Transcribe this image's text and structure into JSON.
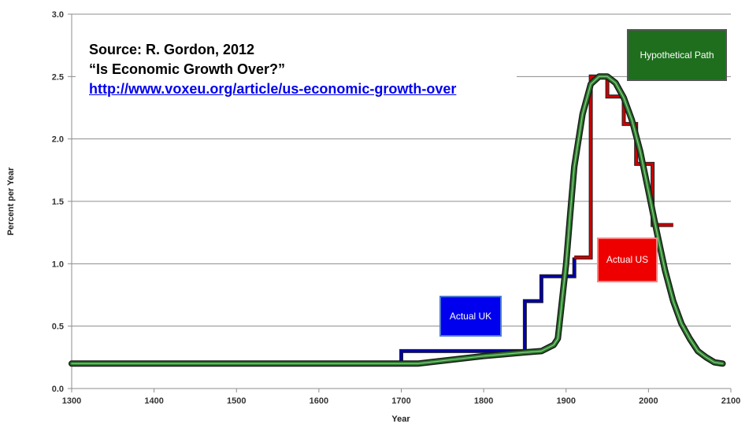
{
  "chart_data": {
    "type": "line",
    "xlabel": "Year",
    "ylabel": "Percent per Year",
    "xlim": [
      1300,
      2100
    ],
    "ylim": [
      0,
      3.0
    ],
    "x_ticks": [
      "1300",
      "1400",
      "1500",
      "1600",
      "1700",
      "1800",
      "1900",
      "2000",
      "2100"
    ],
    "y_ticks": [
      "0.0",
      "0.5",
      "1.0",
      "1.5",
      "2.0",
      "2.5",
      "3.0"
    ],
    "grid": "horizontal",
    "annotation": {
      "source": "Source: R. Gordon, 2012",
      "title": "“Is Economic Growth Over?”",
      "url": "http://www.voxeu.org/article/us-economic-growth-over"
    },
    "series": [
      {
        "name": "Actual UK",
        "color": "#0000aa",
        "step": true,
        "points": [
          [
            1300,
            0.2
          ],
          [
            1700,
            0.2
          ],
          [
            1700,
            0.3
          ],
          [
            1850,
            0.3
          ],
          [
            1850,
            0.7
          ],
          [
            1870,
            0.7
          ],
          [
            1870,
            0.9
          ],
          [
            1910,
            0.9
          ],
          [
            1910,
            1.05
          ]
        ]
      },
      {
        "name": "Actual US",
        "color": "#cc0000",
        "step": true,
        "points": [
          [
            1910,
            1.05
          ],
          [
            1930,
            1.05
          ],
          [
            1930,
            2.5
          ],
          [
            1950,
            2.5
          ],
          [
            1950,
            2.34
          ],
          [
            1970,
            2.34
          ],
          [
            1970,
            2.12
          ],
          [
            1985,
            2.12
          ],
          [
            1985,
            1.8
          ],
          [
            2005,
            1.8
          ],
          [
            2005,
            1.31
          ],
          [
            2030,
            1.31
          ]
        ]
      },
      {
        "name": "Hypothetical Path",
        "color": "#2a7a2a",
        "step": false,
        "points": [
          [
            1300,
            0.2
          ],
          [
            1700,
            0.2
          ],
          [
            1720,
            0.2
          ],
          [
            1800,
            0.26
          ],
          [
            1850,
            0.29
          ],
          [
            1870,
            0.3
          ],
          [
            1885,
            0.35
          ],
          [
            1890,
            0.4
          ],
          [
            1900,
            1.0
          ],
          [
            1905,
            1.4
          ],
          [
            1910,
            1.78
          ],
          [
            1920,
            2.2
          ],
          [
            1930,
            2.44
          ],
          [
            1940,
            2.5
          ],
          [
            1950,
            2.5
          ],
          [
            1960,
            2.45
          ],
          [
            1970,
            2.33
          ],
          [
            1980,
            2.15
          ],
          [
            1990,
            1.9
          ],
          [
            2000,
            1.58
          ],
          [
            2010,
            1.26
          ],
          [
            2020,
            0.95
          ],
          [
            2030,
            0.7
          ],
          [
            2040,
            0.52
          ],
          [
            2050,
            0.4
          ],
          [
            2060,
            0.3
          ],
          [
            2070,
            0.25
          ],
          [
            2080,
            0.21
          ],
          [
            2090,
            0.2
          ]
        ]
      }
    ],
    "labels": [
      {
        "text": "Actual UK",
        "fill": "#0000ee",
        "border": "#4d7ad6"
      },
      {
        "text": "Actual US",
        "fill": "#ee0000",
        "border": "#ff8080"
      },
      {
        "text": "Hypothetical Path",
        "fill": "#1e6e1e",
        "border": "#555555"
      }
    ]
  }
}
